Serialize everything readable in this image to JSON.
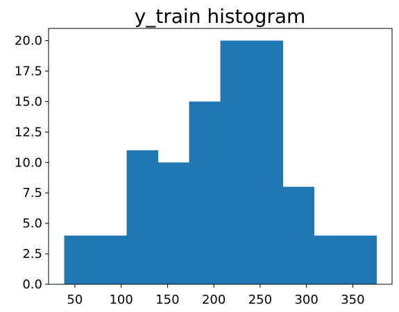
{
  "chart_data": {
    "type": "bar",
    "title": "y_train histogram",
    "xlabel": "",
    "ylabel": "",
    "bin_edges": [
      38.5,
      72.2,
      105.9,
      139.6,
      173.3,
      207.0,
      240.7,
      274.4,
      308.1,
      341.8,
      375.5
    ],
    "values": [
      4,
      4,
      11,
      10,
      15,
      20,
      20,
      8,
      4,
      4
    ],
    "xlim": [
      21.6,
      392.4
    ],
    "ylim": [
      0,
      21
    ],
    "xticks": [
      50,
      100,
      150,
      200,
      250,
      300,
      350
    ],
    "xtick_labels": [
      "50",
      "100",
      "150",
      "200",
      "250",
      "300",
      "350"
    ],
    "yticks": [
      0,
      2.5,
      5,
      7.5,
      10,
      12.5,
      15,
      17.5,
      20
    ],
    "ytick_labels": [
      "0.0",
      "2.5",
      "5.0",
      "7.5",
      "10.0",
      "12.5",
      "15.0",
      "17.5",
      "20.0"
    ],
    "grid": false,
    "bar_color": "#1f77b4"
  }
}
